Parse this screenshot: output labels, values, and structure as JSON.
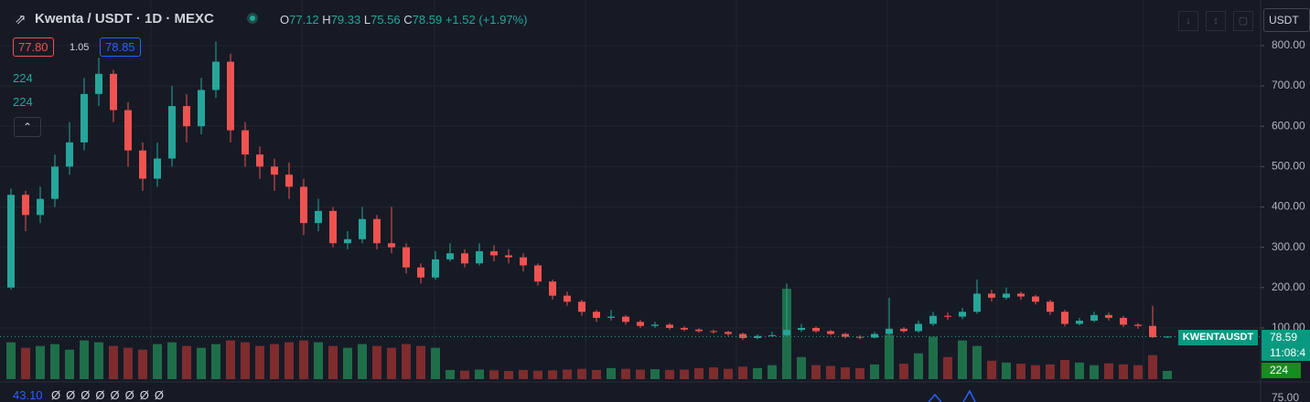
{
  "header": {
    "symbol": "Kwenta / USDT · 1D · MEXC",
    "ohlc_labels": [
      "O",
      "H",
      "L",
      "C"
    ],
    "change": "+1.52 (+1.97%)"
  },
  "trade_box": {
    "sell": "77.80",
    "spread": "1.05",
    "buy": "78.85"
  },
  "currency_button": "USDT",
  "countdown": "11:08:4",
  "indicator": {
    "value": "43.10",
    "params": [
      "Ø",
      "Ø",
      "Ø",
      "Ø",
      "Ø",
      "Ø",
      "Ø",
      "Ø"
    ],
    "yticks": [
      {
        "value": 75,
        "label": "75.00"
      }
    ]
  },
  "chart_data": {
    "type": "candlestick",
    "symbol": "KWENTAUSDT",
    "up_color": "#26a69a",
    "down_color": "#ef5350",
    "ylim": [
      -27,
      913
    ],
    "yticks": [
      {
        "value": 100,
        "label": "100.00"
      },
      {
        "value": 200,
        "label": "200.00"
      },
      {
        "value": 300,
        "label": "300.00"
      },
      {
        "value": 400,
        "label": "400.00"
      },
      {
        "value": 500,
        "label": "500.00"
      },
      {
        "value": 600,
        "label": "600.00"
      },
      {
        "value": 700,
        "label": "700.00"
      },
      {
        "value": 800,
        "label": "800.00"
      }
    ],
    "grid": true,
    "open": [
      200,
      430,
      380,
      420,
      500,
      560,
      680,
      730,
      640,
      540,
      470,
      520,
      650,
      600,
      690,
      760,
      590,
      530,
      500,
      480,
      450,
      360,
      390,
      310,
      320,
      370,
      310,
      300,
      250,
      225,
      270,
      285,
      260,
      290,
      280,
      275,
      255,
      215,
      180,
      165,
      140,
      125,
      128,
      115,
      105,
      108,
      100,
      96,
      92,
      90,
      85,
      75,
      80,
      82,
      95,
      100,
      92,
      85,
      78,
      76,
      85,
      98,
      92,
      110,
      130,
      128,
      140,
      185,
      175,
      185,
      178,
      165,
      140,
      110,
      118,
      132,
      125,
      108,
      105,
      77.12
    ],
    "high": [
      445,
      440,
      450,
      530,
      610,
      720,
      770,
      740,
      660,
      560,
      560,
      700,
      680,
      720,
      810,
      780,
      610,
      550,
      520,
      510,
      470,
      420,
      400,
      340,
      400,
      380,
      400,
      310,
      260,
      290,
      310,
      295,
      310,
      305,
      295,
      285,
      260,
      220,
      190,
      170,
      145,
      145,
      132,
      120,
      115,
      112,
      104,
      99,
      96,
      93,
      88,
      84,
      90,
      210,
      110,
      104,
      95,
      88,
      82,
      90,
      175,
      102,
      118,
      140,
      138,
      150,
      220,
      195,
      200,
      190,
      182,
      170,
      145,
      125,
      140,
      138,
      130,
      112,
      155,
      79.33
    ],
    "low": [
      195,
      340,
      360,
      400,
      480,
      540,
      650,
      610,
      500,
      440,
      450,
      500,
      560,
      580,
      670,
      560,
      500,
      470,
      440,
      420,
      330,
      340,
      300,
      295,
      310,
      295,
      285,
      235,
      210,
      220,
      265,
      250,
      255,
      265,
      260,
      240,
      205,
      170,
      155,
      130,
      115,
      118,
      108,
      100,
      100,
      95,
      92,
      88,
      86,
      80,
      70,
      72,
      78,
      80,
      90,
      88,
      82,
      74,
      72,
      74,
      82,
      88,
      88,
      105,
      120,
      122,
      135,
      165,
      170,
      170,
      158,
      132,
      104,
      106,
      114,
      118,
      102,
      98,
      75,
      75.56
    ],
    "close": [
      430,
      380,
      420,
      500,
      560,
      680,
      730,
      640,
      540,
      470,
      520,
      650,
      600,
      690,
      760,
      590,
      530,
      500,
      480,
      450,
      360,
      390,
      310,
      320,
      370,
      310,
      300,
      250,
      225,
      270,
      285,
      260,
      290,
      280,
      275,
      255,
      215,
      180,
      165,
      140,
      125,
      128,
      115,
      105,
      108,
      100,
      96,
      92,
      90,
      85,
      75,
      80,
      82,
      95,
      100,
      92,
      85,
      78,
      76,
      85,
      98,
      92,
      110,
      130,
      128,
      140,
      185,
      175,
      185,
      178,
      165,
      140,
      110,
      118,
      132,
      125,
      108,
      105,
      77.07,
      78.59
    ],
    "vlim": [
      0,
      2600
    ],
    "volume": [
      1000,
      850,
      900,
      950,
      800,
      1050,
      1000,
      900,
      850,
      800,
      950,
      1000,
      900,
      850,
      950,
      1050,
      1000,
      900,
      950,
      1000,
      1050,
      1000,
      900,
      850,
      950,
      900,
      850,
      950,
      900,
      850,
      250,
      230,
      260,
      240,
      220,
      250,
      230,
      240,
      260,
      280,
      250,
      300,
      280,
      260,
      270,
      250,
      260,
      300,
      320,
      280,
      340,
      300,
      380,
      2450,
      600,
      380,
      360,
      320,
      300,
      400,
      1200,
      420,
      700,
      1150,
      600,
      1050,
      900,
      500,
      450,
      420,
      380,
      400,
      520,
      450,
      380,
      430,
      400,
      380,
      650,
      224
    ]
  }
}
